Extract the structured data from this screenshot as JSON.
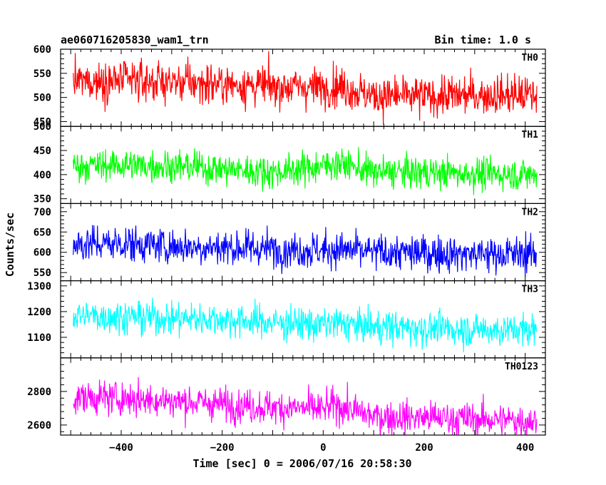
{
  "header": {
    "title": "ae060716205830_wam1_trn",
    "bin_time": "Bin time: 1.0 s"
  },
  "chart_data": {
    "type": "line",
    "title": "ae060716205830_wam1_trn",
    "xlabel": "Time [sec] 0 = 2006/07/16 20:58:30",
    "ylabel": "Counts/sec",
    "xlim": [
      -520,
      440
    ],
    "x_ticks": [
      -400,
      -200,
      0,
      200,
      400
    ],
    "x_range": [
      -495,
      423
    ],
    "grid": false,
    "panels": [
      {
        "name": "TH0",
        "color": "#ff0000",
        "ylim": [
          440,
          600
        ],
        "y_ticks": [
          450,
          500,
          550,
          600
        ],
        "series": [
          {
            "x": [
              -495,
              -400,
              -300,
              -200,
              -100,
              0,
              25,
              100,
              200,
              300,
              423
            ],
            "values": [
              533,
              535,
              532,
              528,
              523,
              521,
              525,
              503,
              502,
              505,
              505
            ]
          }
        ],
        "noise_amplitude": 35
      },
      {
        "name": "TH1",
        "color": "#00ff00",
        "ylim": [
          340,
          500
        ],
        "y_ticks": [
          350,
          400,
          450,
          500
        ],
        "series": [
          {
            "x": [
              -495,
              -400,
              -300,
              -200,
              -100,
              0,
              25,
              100,
              200,
              300,
              423
            ],
            "values": [
              418,
              420,
              418,
              412,
              405,
              418,
              425,
              405,
              405,
              402,
              400
            ]
          }
        ],
        "noise_amplitude": 28
      },
      {
        "name": "TH2",
        "color": "#0000ff",
        "ylim": [
          530,
          720
        ],
        "y_ticks": [
          550,
          600,
          650,
          700
        ],
        "series": [
          {
            "x": [
              -495,
              -400,
              -300,
              -200,
              -100,
              0,
              25,
              100,
              200,
              300,
              423
            ],
            "values": [
              620,
              622,
              615,
              612,
              608,
              605,
              607,
              600,
              598,
              596,
              595
            ]
          }
        ],
        "noise_amplitude": 38
      },
      {
        "name": "TH3",
        "color": "#00ffff",
        "ylim": [
          1020,
          1320
        ],
        "y_ticks": [
          1100,
          1200,
          1300
        ],
        "series": [
          {
            "x": [
              -495,
              -400,
              -300,
              -200,
              -100,
              0,
              25,
              100,
              200,
              300,
              423
            ],
            "values": [
              1185,
              1180,
              1175,
              1170,
              1158,
              1150,
              1155,
              1140,
              1135,
              1130,
              1128
            ]
          }
        ],
        "noise_amplitude": 55
      },
      {
        "name": "TH0123",
        "color": "#ff00ff",
        "ylim": [
          2540,
          3000
        ],
        "y_ticks": [
          2600,
          2800
        ],
        "series": [
          {
            "x": [
              -495,
              -400,
              -300,
              -200,
              -100,
              0,
              25,
              100,
              200,
              300,
              423
            ],
            "values": [
              2765,
              2760,
              2745,
              2725,
              2705,
              2695,
              2720,
              2650,
              2645,
              2635,
              2625
            ]
          }
        ],
        "noise_amplitude": 85
      }
    ]
  }
}
